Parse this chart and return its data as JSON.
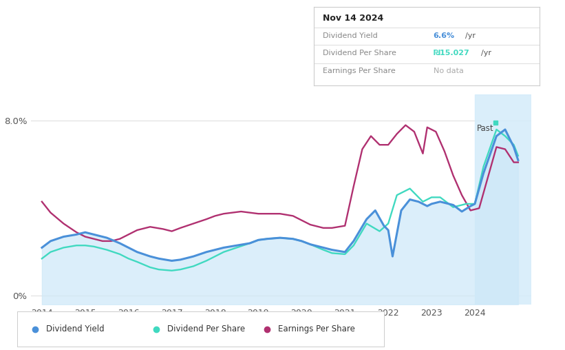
{
  "bg_color": "#ffffff",
  "div_yield_color": "#4a90d9",
  "div_per_share_color": "#40d9c0",
  "eps_color": "#b03070",
  "fill_color": "#cde8f8",
  "past_fill_color": "#d4ecfa",
  "past_start": 2024.0,
  "xmin": 2013.75,
  "xmax": 2025.3,
  "ymin": -0.4,
  "ymax": 9.2,
  "legend_items": [
    "Dividend Yield",
    "Dividend Per Share",
    "Earnings Per Share"
  ],
  "info_box": {
    "date": "Nov 14 2024",
    "div_yield_val": "6.6%",
    "div_yield_unit": "/yr",
    "div_per_share_val": "₪15.027",
    "div_per_share_unit": "/yr",
    "eps_val": "No data"
  },
  "div_yield_x": [
    2014.0,
    2014.2,
    2014.5,
    2014.8,
    2015.0,
    2015.2,
    2015.5,
    2015.8,
    2016.0,
    2016.2,
    2016.5,
    2016.7,
    2017.0,
    2017.2,
    2017.5,
    2017.8,
    2018.0,
    2018.2,
    2018.5,
    2018.8,
    2019.0,
    2019.2,
    2019.5,
    2019.8,
    2020.0,
    2020.2,
    2020.5,
    2020.7,
    2021.0,
    2021.2,
    2021.5,
    2021.7,
    2021.9,
    2022.0,
    2022.1,
    2022.3,
    2022.5,
    2022.7,
    2022.9,
    2023.0,
    2023.2,
    2023.5,
    2023.7,
    2023.9,
    2024.0,
    2024.2,
    2024.5,
    2024.7,
    2024.9,
    2025.0
  ],
  "div_yield_y": [
    2.2,
    2.5,
    2.7,
    2.8,
    2.9,
    2.8,
    2.65,
    2.4,
    2.2,
    2.0,
    1.8,
    1.7,
    1.6,
    1.65,
    1.8,
    2.0,
    2.1,
    2.2,
    2.3,
    2.4,
    2.55,
    2.6,
    2.65,
    2.6,
    2.5,
    2.35,
    2.2,
    2.1,
    2.0,
    2.5,
    3.5,
    3.9,
    3.2,
    3.0,
    1.8,
    3.9,
    4.4,
    4.3,
    4.1,
    4.2,
    4.3,
    4.15,
    3.85,
    4.1,
    4.2,
    5.6,
    7.3,
    7.6,
    6.8,
    6.2
  ],
  "dps_x": [
    2014.0,
    2014.2,
    2014.5,
    2014.8,
    2015.0,
    2015.2,
    2015.5,
    2015.8,
    2016.0,
    2016.2,
    2016.5,
    2016.7,
    2017.0,
    2017.2,
    2017.5,
    2017.8,
    2018.0,
    2018.2,
    2018.5,
    2018.8,
    2019.0,
    2019.2,
    2019.5,
    2019.8,
    2020.0,
    2020.2,
    2020.5,
    2020.7,
    2021.0,
    2021.2,
    2021.5,
    2021.8,
    2022.0,
    2022.2,
    2022.5,
    2022.8,
    2023.0,
    2023.2,
    2023.5,
    2023.8,
    2024.0,
    2024.2,
    2024.5,
    2024.7,
    2024.9,
    2025.0
  ],
  "dps_y": [
    1.7,
    2.0,
    2.2,
    2.3,
    2.3,
    2.25,
    2.1,
    1.9,
    1.7,
    1.55,
    1.3,
    1.2,
    1.15,
    1.2,
    1.35,
    1.6,
    1.8,
    2.0,
    2.2,
    2.4,
    2.55,
    2.6,
    2.65,
    2.6,
    2.5,
    2.35,
    2.1,
    1.95,
    1.9,
    2.3,
    3.3,
    2.95,
    3.3,
    4.6,
    4.9,
    4.3,
    4.5,
    4.5,
    4.05,
    4.2,
    4.2,
    5.9,
    7.6,
    7.3,
    6.9,
    6.4
  ],
  "eps_x": [
    2014.0,
    2014.2,
    2014.5,
    2014.8,
    2015.0,
    2015.2,
    2015.4,
    2015.6,
    2015.8,
    2016.0,
    2016.2,
    2016.5,
    2016.8,
    2017.0,
    2017.2,
    2017.5,
    2017.8,
    2018.0,
    2018.2,
    2018.4,
    2018.6,
    2018.8,
    2019.0,
    2019.2,
    2019.5,
    2019.8,
    2020.0,
    2020.2,
    2020.5,
    2020.7,
    2021.0,
    2021.2,
    2021.4,
    2021.6,
    2021.8,
    2022.0,
    2022.2,
    2022.4,
    2022.6,
    2022.8,
    2022.9,
    2023.1,
    2023.3,
    2023.5,
    2023.7,
    2023.9,
    2024.1,
    2024.3,
    2024.5,
    2024.7,
    2024.9,
    2025.0
  ],
  "eps_y": [
    4.3,
    3.8,
    3.3,
    2.9,
    2.7,
    2.6,
    2.5,
    2.5,
    2.6,
    2.8,
    3.0,
    3.15,
    3.05,
    2.95,
    3.1,
    3.3,
    3.5,
    3.65,
    3.75,
    3.8,
    3.85,
    3.8,
    3.75,
    3.75,
    3.75,
    3.65,
    3.45,
    3.25,
    3.1,
    3.1,
    3.2,
    5.0,
    6.7,
    7.3,
    6.9,
    6.9,
    7.4,
    7.8,
    7.5,
    6.5,
    7.7,
    7.5,
    6.6,
    5.5,
    4.6,
    3.9,
    4.0,
    5.4,
    6.8,
    6.7,
    6.1,
    6.1
  ]
}
